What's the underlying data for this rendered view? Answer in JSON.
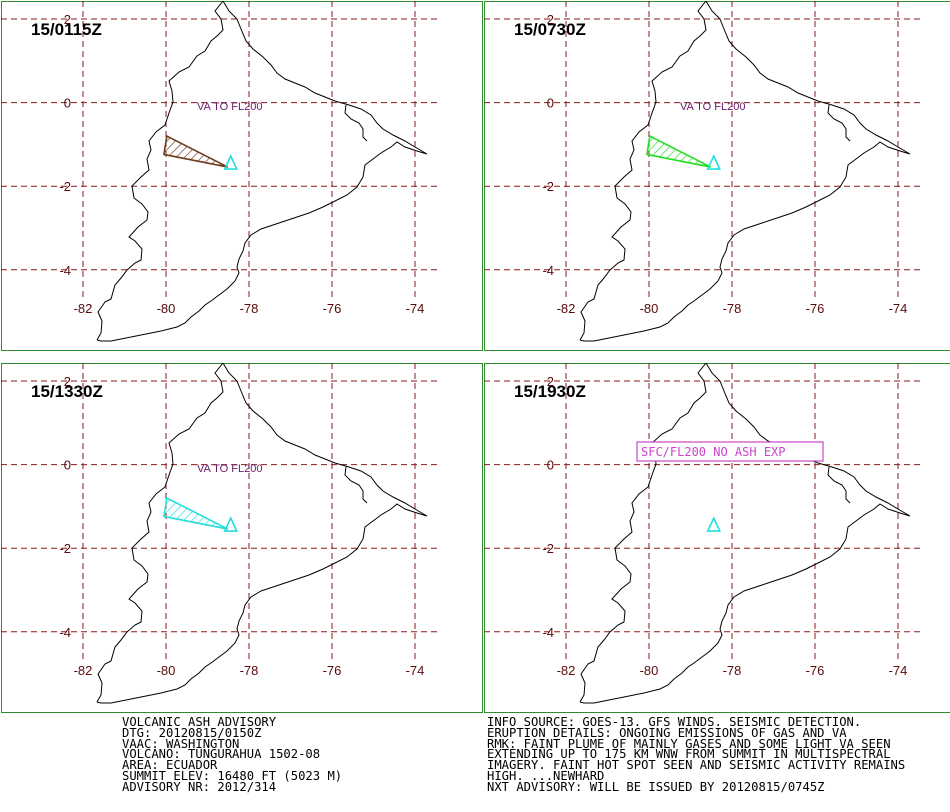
{
  "panels": [
    {
      "time_label": "15/0115Z",
      "annotation": "VA TO FL200",
      "plume_color": "#6e3b1e"
    },
    {
      "time_label": "15/0730Z",
      "annotation": "VA TO FL200",
      "plume_color": "#22dd22"
    },
    {
      "time_label": "15/1330Z",
      "annotation": "VA TO FL200",
      "plume_color": "#22dddd"
    },
    {
      "time_label": "15/1930Z",
      "annotation": "SFC/FL200 NO ASH EXP",
      "plume_color": ""
    }
  ],
  "map_axes": {
    "lon_ticks": [
      "-82",
      "-80",
      "-78",
      "-76",
      "-74"
    ],
    "lat_ticks": [
      "2",
      "0",
      "-2",
      "-4"
    ]
  },
  "advisory_left": [
    "VOLCANIC ASH ADVISORY",
    "DTG: 20120815/0150Z",
    "VAAC: WASHINGTON",
    "VOLCANO: TUNGURAHUA 1502-08",
    "AREA: ECUADOR",
    "SUMMIT ELEV: 16480 FT (5023 M)",
    "ADVISORY NR: 2012/314"
  ],
  "advisory_right": [
    "INFO SOURCE: GOES-13. GFS WINDS. SEISMIC DETECTION.",
    "ERUPTION DETAILS: ONGOING EMISSIONS OF GAS AND VA",
    "RMK: FAINT PLUME OF MAINLY GASES AND SOME LIGHT VA SEEN",
    "EXTENDING UP TO 175 KM WNW FROM SUMMIT IN MULTISPECTRAL",
    "IMAGERY. FAINT HOT SPOT SEEN AND SEISMIC ACTIVITY REMAINS",
    "HIGH. ...NEWHARD",
    "NXT ADVISORY: WILL BE ISSUED BY 20120815/0745Z"
  ],
  "colors": {
    "frame": "#2e8b2e",
    "grid": "#8b1a1a",
    "tick_text": "#5a0a0a",
    "annotation": "#6a1a6a",
    "volcano": "#22dddd",
    "box_label": "#cc44cc"
  }
}
